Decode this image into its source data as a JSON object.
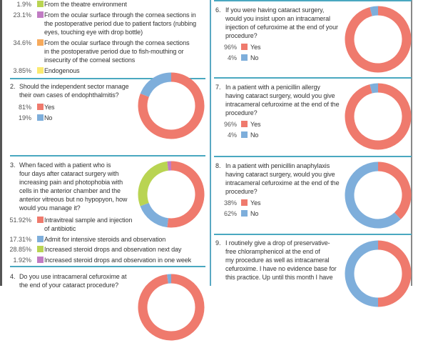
{
  "colors": {
    "red": "#ef7a6d",
    "blue": "#7eaedb",
    "green": "#b9d452",
    "purple": "#c17cc4",
    "orange": "#f7aa5c",
    "yellow": "#fbea70",
    "divider": "#4aa8c0"
  },
  "chart_data": [
    {
      "type": "legend-fragment",
      "question_number": "",
      "title": "",
      "legend": [
        {
          "pct": "1.9%",
          "label": "From the theatre environment",
          "color": "#b9d452",
          "value": 1.9
        },
        {
          "pct": "23.1%",
          "label": "From the ocular surface through the cornea sections in\nthe postoperative period due to patient factors (rubbing\neyes, touching eye with drop bottle)",
          "color": "#c17cc4",
          "value": 23.1
        },
        {
          "pct": "34.6%",
          "label": "From the ocular surface through the cornea sections\nin the postoperative period due to fish-mouthing or\ninsecurity of the corneal sections",
          "color": "#f7aa5c",
          "value": 34.6
        },
        {
          "pct": "3.85%",
          "label": "Endogenous",
          "color": "#fbea70",
          "value": 3.85
        }
      ]
    },
    {
      "type": "pie",
      "question_number": "2.",
      "title": "Should the independent sector manage\ntheir own cases of endophthalmitis?",
      "legend": [
        {
          "pct": "81%",
          "label": "Yes",
          "color": "#ef7a6d",
          "value": 81
        },
        {
          "pct": "19%",
          "label": "No",
          "color": "#7eaedb",
          "value": 19
        }
      ]
    },
    {
      "type": "pie",
      "question_number": "3.",
      "title": "When faced with a patient who is\nfour days after cataract surgery with\nincreasing pain and photophobia with\ncells in the anterior chamber and the\nanterior vitreous but no hypopyon, how\nwould you manage it?",
      "legend": [
        {
          "pct": "51.92%",
          "label": "Intravitreal sample and injection\nof antibiotic",
          "color": "#ef7a6d",
          "value": 51.92
        },
        {
          "pct": "17.31%",
          "label": "Admit for intensive steroids and observation",
          "color": "#7eaedb",
          "value": 17.31
        },
        {
          "pct": "28.85%",
          "label": "Increased steroid drops and observation next day",
          "color": "#b9d452",
          "value": 28.85
        },
        {
          "pct": "1.92%",
          "label": "Increased steroid drops and observation in one week",
          "color": "#c17cc4",
          "value": 1.92
        }
      ]
    },
    {
      "type": "pie",
      "question_number": "4.",
      "title": "Do you use intracameral cefuroxime at\nthe end of your cataract procedure?",
      "legend": [
        {
          "pct": "",
          "label": "",
          "color": "#ef7a6d",
          "value": 98
        },
        {
          "pct": "",
          "label": "",
          "color": "#7eaedb",
          "value": 2
        }
      ]
    },
    {
      "type": "pie",
      "question_number": "6.",
      "title": "If you were having cataract surgery,\nwould you insist upon an intracameral\ninjection of cefuroxime at the end of your\nprocedure?",
      "legend": [
        {
          "pct": "96%",
          "label": "Yes",
          "color": "#ef7a6d",
          "value": 96
        },
        {
          "pct": "4%",
          "label": "No",
          "color": "#7eaedb",
          "value": 4
        }
      ]
    },
    {
      "type": "pie",
      "question_number": "7.",
      "title": "In a patient with a penicillin allergy\nhaving cataract surgery, would you give\nintracameral cefuroxime at the end of the\nprocedure?",
      "legend": [
        {
          "pct": "96%",
          "label": "Yes",
          "color": "#ef7a6d",
          "value": 96
        },
        {
          "pct": "4%",
          "label": "No",
          "color": "#7eaedb",
          "value": 4
        }
      ]
    },
    {
      "type": "pie",
      "question_number": "8.",
      "title": "In a patient with penicillin anaphylaxis\nhaving cataract surgery, would you give\nintracameral cefuroxime at the end of the\nprocedure?",
      "legend": [
        {
          "pct": "38%",
          "label": "Yes",
          "color": "#ef7a6d",
          "value": 38
        },
        {
          "pct": "62%",
          "label": "No",
          "color": "#7eaedb",
          "value": 62
        }
      ]
    },
    {
      "type": "pie",
      "question_number": "9.",
      "title": "I routinely give a drop of preservative-\nfree chloramphenicol at the end of\nmy procedure as well as intracameral\ncefuroxime. I have no evidence base for\nthis practice. Up until this month I have",
      "legend": [
        {
          "pct": "",
          "label": "",
          "color": "#ef7a6d",
          "value": 50
        },
        {
          "pct": "",
          "label": "",
          "color": "#7eaedb",
          "value": 50
        }
      ]
    }
  ]
}
